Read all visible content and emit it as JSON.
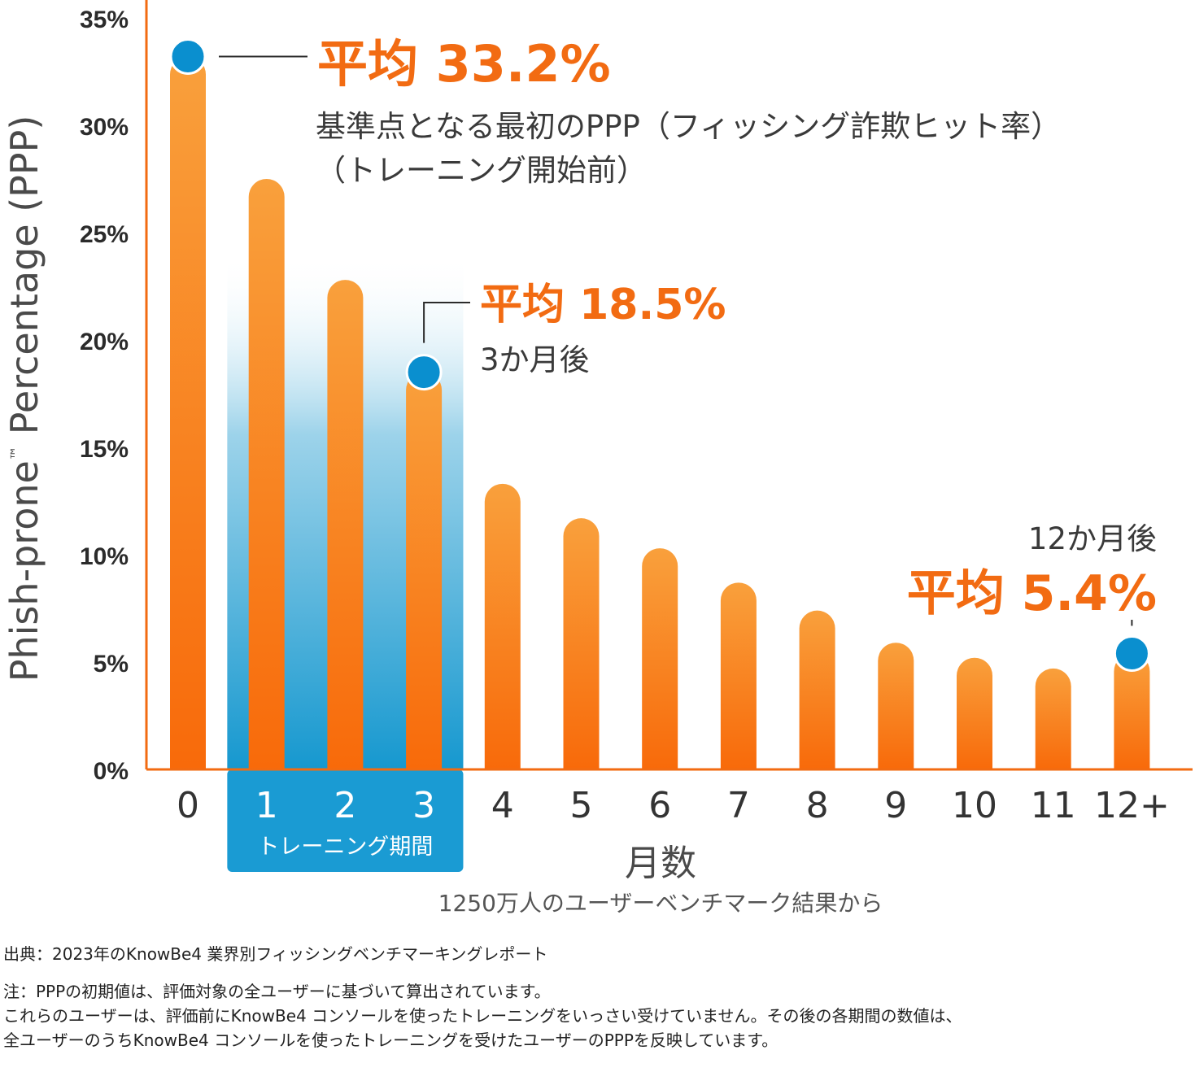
{
  "chart_data": {
    "type": "bar",
    "categories": [
      "0",
      "1",
      "2",
      "3",
      "4",
      "5",
      "6",
      "7",
      "8",
      "9",
      "10",
      "11",
      "12+"
    ],
    "values": [
      33.2,
      27.5,
      22.8,
      18.5,
      13.3,
      11.7,
      10.3,
      8.7,
      7.4,
      5.9,
      5.2,
      4.7,
      5.4
    ],
    "ylim": [
      0,
      35
    ],
    "yticks": [
      "0%",
      "5%",
      "10%",
      "15%",
      "20%",
      "25%",
      "30%",
      "35%"
    ],
    "ytick_values": [
      0,
      5,
      10,
      15,
      20,
      25,
      30,
      35
    ],
    "ylabel_main": "Phish-prone",
    "ylabel_tm": "™",
    "ylabel_rest": "Percentage (PPP)",
    "xlabel": "月数",
    "subtitle": "1250万人のユーザーベンチマーク結果から",
    "training_period": {
      "label": "トレーニング期間",
      "categories": [
        "1",
        "2",
        "3"
      ]
    },
    "bar_color": "#f7731e",
    "highlight_color": "#1a9fd4",
    "marker_color": "#0a8fcf",
    "accent_color": "#f26b12",
    "annotations": [
      {
        "category": "0",
        "value": 33.2,
        "headline": "平均 33.2%",
        "line1": "基準点となる最初のPPP（フィッシング詐欺ヒット率）",
        "line2": "（トレーニング開始前）"
      },
      {
        "category": "3",
        "value": 18.5,
        "headline": "平均 18.5%",
        "line1": "3か月後"
      },
      {
        "category": "12+",
        "value": 5.4,
        "headline": "平均 5.4%",
        "line1": "12か月後"
      }
    ]
  },
  "footer": {
    "source": "出典：2023年のKnowBe4 業界別フィッシングベンチマーキングレポート",
    "note1": "注：PPPの初期値は、評価対象の全ユーザーに基づいて算出されています。",
    "note2": "これらのユーザーは、評価前にKnowBe4 コンソールを使ったトレーニングをいっさい受けていません。その後の各期間の数値は、",
    "note3": "全ユーザーのうちKnowBe4 コンソールを使ったトレーニングを受けたユーザーのPPPを反映しています。"
  }
}
